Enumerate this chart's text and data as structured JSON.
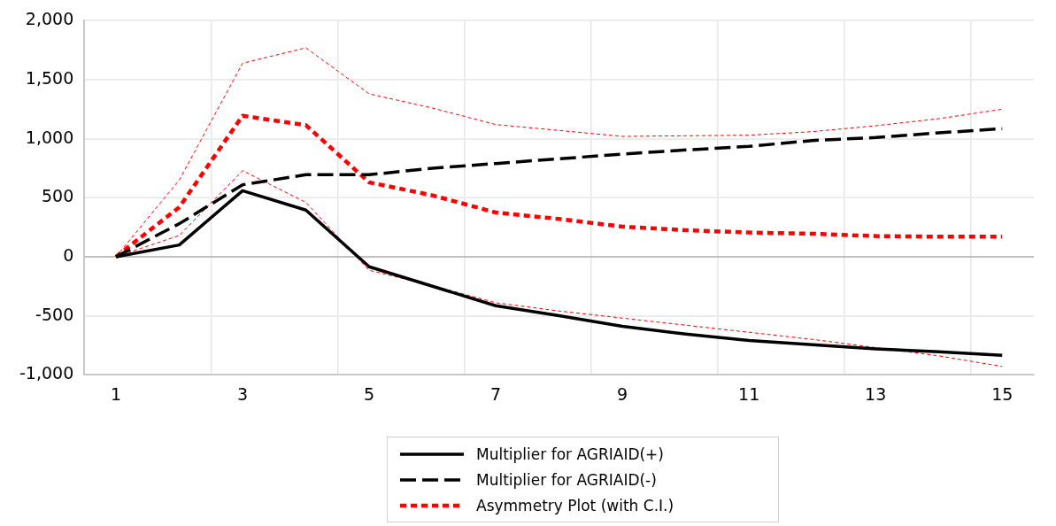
{
  "chart_data": {
    "type": "line",
    "categories": [
      "1",
      null,
      "3",
      null,
      "5",
      null,
      "7",
      null,
      "9",
      null,
      "11",
      null,
      "13",
      null,
      "15"
    ],
    "series": [
      {
        "name": "Multiplier for AGRIAID(+)",
        "color": "#000000",
        "line_style": "solid",
        "values": [
          0,
          100,
          560,
          395,
          -85,
          -250,
          -415,
          -500,
          -590,
          -655,
          -710,
          -745,
          -780,
          -805,
          -835
        ]
      },
      {
        "name": "Multiplier for AGRIAID(-)",
        "color": "#000000",
        "line_style": "dashed",
        "values": [
          0,
          280,
          610,
          695,
          695,
          750,
          790,
          830,
          870,
          905,
          935,
          985,
          1010,
          1050,
          1085
        ]
      },
      {
        "name": "Asymmetry Plot (with C.I.)",
        "color": "#ff0000",
        "line_style": "dotted",
        "values": [
          0,
          420,
          1195,
          1115,
          630,
          520,
          375,
          320,
          255,
          225,
          205,
          195,
          175,
          170,
          170
        ]
      },
      {
        "color": "#ff0000",
        "line_style": "dashed",
        "values": [
          0,
          650,
          1640,
          1770,
          1380,
          1260,
          1120,
          1070,
          1020,
          1025,
          1030,
          1060,
          1110,
          1170,
          1250
        ]
      },
      {
        "color": "#ff0000",
        "line_style": "dashed",
        "values": [
          0,
          180,
          730,
          460,
          -115,
          -245,
          -390,
          -460,
          -520,
          -580,
          -640,
          -700,
          -770,
          -840,
          -930
        ]
      }
    ],
    "ylim": [
      -1000,
      2000
    ],
    "yticks": [
      {
        "value": -1000,
        "label": "-1,000"
      },
      {
        "value": -500,
        "label": "-500"
      },
      {
        "value": 0,
        "label": "0"
      },
      {
        "value": 500,
        "label": "500"
      },
      {
        "value": 1000,
        "label": "1,000"
      },
      {
        "value": 1500,
        "label": "1,500"
      },
      {
        "value": 2000,
        "label": "2,000"
      }
    ],
    "grid": true,
    "legend": "bottom"
  }
}
